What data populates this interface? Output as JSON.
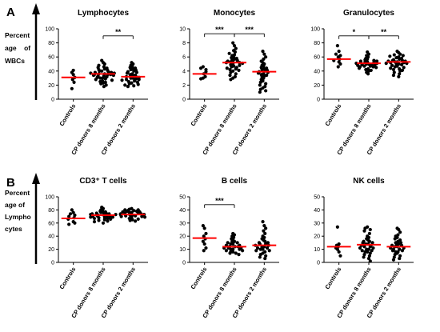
{
  "figure": {
    "rows": [
      {
        "letter": "A",
        "ylabel_lines": [
          "Percent",
          "age    of",
          "WBCs"
        ]
      },
      {
        "letter": "B",
        "ylabel_lines": [
          "Percent",
          "age of",
          "Lympho",
          "cytes"
        ]
      }
    ]
  },
  "chart_data": [
    {
      "type": "scatter",
      "title": "Lymphocytes",
      "categories": [
        "Controls",
        "CP donors 8 months",
        "CP donors 2 months"
      ],
      "ylim": [
        0,
        100
      ],
      "yticks": [
        0,
        20,
        40,
        60,
        80,
        100
      ],
      "medians": [
        31,
        36,
        32
      ],
      "series": [
        {
          "values": [
            38,
            35,
            31,
            28,
            24,
            15,
            41
          ]
        },
        {
          "values": [
            55,
            52,
            50,
            48,
            46,
            45,
            44,
            43,
            42,
            41,
            40,
            40,
            39,
            38,
            38,
            37,
            37,
            36,
            36,
            35,
            35,
            35,
            34,
            34,
            33,
            33,
            32,
            31,
            30,
            30,
            29,
            28,
            27,
            26,
            25,
            24,
            23,
            22,
            20,
            18
          ]
        },
        {
          "values": [
            52,
            50,
            48,
            46,
            45,
            44,
            43,
            42,
            41,
            40,
            39,
            38,
            37,
            36,
            35,
            34,
            33,
            33,
            32,
            32,
            31,
            30,
            30,
            29,
            28,
            28,
            27,
            26,
            25,
            24,
            23,
            22,
            21,
            20,
            19,
            18
          ]
        }
      ],
      "significance": [
        {
          "from": 1,
          "to": 2,
          "label": "**",
          "y": 90
        }
      ],
      "median_color": "#ff0000",
      "point_color": "#000000"
    },
    {
      "type": "scatter",
      "title": "Monocytes",
      "categories": [
        "Controls",
        "CP donors 8 months",
        "CP donors 2 months"
      ],
      "ylim": [
        0,
        10
      ],
      "yticks": [
        0,
        2,
        4,
        6,
        8,
        10
      ],
      "medians": [
        3.6,
        5.2,
        3.9
      ],
      "series": [
        {
          "values": [
            4.6,
            4.4,
            3.9,
            3.6,
            3.2,
            3.0,
            2.9,
            4.2
          ]
        },
        {
          "values": [
            8.0,
            7.6,
            7.2,
            6.9,
            6.7,
            6.5,
            6.3,
            6.2,
            6.0,
            5.9,
            5.8,
            5.7,
            5.6,
            5.5,
            5.4,
            5.3,
            5.3,
            5.2,
            5.2,
            5.1,
            5.0,
            4.9,
            4.8,
            4.7,
            4.6,
            4.5,
            4.4,
            4.3,
            4.2,
            4.1,
            4.0,
            3.8,
            3.6,
            3.4,
            3.2,
            3.0,
            2.8
          ]
        },
        {
          "values": [
            6.8,
            6.4,
            6.0,
            5.7,
            5.4,
            5.2,
            5.0,
            4.8,
            4.7,
            4.5,
            4.4,
            4.3,
            4.2,
            4.1,
            4.0,
            3.9,
            3.8,
            3.7,
            3.6,
            3.5,
            3.4,
            3.3,
            3.2,
            3.0,
            2.8,
            2.6,
            2.4,
            2.2,
            2.0,
            1.8,
            1.6,
            1.4,
            1.2,
            1.0
          ]
        }
      ],
      "significance": [
        {
          "from": 0,
          "to": 1,
          "label": "***",
          "y": 9.3
        },
        {
          "from": 1,
          "to": 2,
          "label": "***",
          "y": 9.3
        }
      ],
      "median_color": "#ff0000",
      "point_color": "#000000"
    },
    {
      "type": "scatter",
      "title": "Granulocytes",
      "categories": [
        "Controls",
        "CP donors 8 months",
        "CP donors 2 months"
      ],
      "ylim": [
        0,
        100
      ],
      "yticks": [
        0,
        20,
        40,
        60,
        80,
        100
      ],
      "medians": [
        57,
        51,
        53
      ],
      "series": [
        {
          "values": [
            76,
            68,
            62,
            60,
            57,
            55,
            53,
            50,
            46,
            64
          ]
        },
        {
          "values": [
            67,
            64,
            62,
            60,
            58,
            57,
            56,
            55,
            54,
            54,
            53,
            53,
            52,
            52,
            51,
            51,
            50,
            50,
            49,
            49,
            48,
            48,
            47,
            47,
            46,
            46,
            45,
            44,
            43,
            42,
            41,
            40,
            38,
            36
          ]
        },
        {
          "values": [
            68,
            66,
            64,
            63,
            62,
            61,
            60,
            59,
            58,
            57,
            56,
            55,
            55,
            54,
            54,
            53,
            53,
            52,
            52,
            51,
            51,
            50,
            50,
            49,
            48,
            47,
            46,
            45,
            44,
            43,
            42,
            41,
            40,
            38,
            36,
            34,
            32
          ]
        }
      ],
      "significance": [
        {
          "from": 0,
          "to": 1,
          "label": "*",
          "y": 90
        },
        {
          "from": 1,
          "to": 2,
          "label": "**",
          "y": 90
        }
      ],
      "median_color": "#ff0000",
      "point_color": "#000000"
    },
    {
      "type": "scatter",
      "title": "CD3⁺ T cells",
      "categories": [
        "Controls",
        "CP donors 8 months",
        "CP donors 2 months"
      ],
      "ylim": [
        0,
        100
      ],
      "yticks": [
        0,
        20,
        40,
        60,
        80,
        100
      ],
      "medians": [
        67,
        72,
        73
      ],
      "series": [
        {
          "values": [
            80,
            76,
            72,
            70,
            68,
            66,
            62,
            60,
            58,
            74
          ]
        },
        {
          "values": [
            84,
            82,
            80,
            79,
            78,
            77,
            76,
            76,
            75,
            75,
            74,
            74,
            73,
            73,
            72,
            72,
            71,
            71,
            70,
            70,
            69,
            69,
            68,
            68,
            67,
            67,
            66,
            65,
            64,
            63,
            62,
            60
          ]
        },
        {
          "values": [
            82,
            81,
            80,
            80,
            79,
            79,
            78,
            78,
            77,
            77,
            76,
            76,
            75,
            75,
            74,
            74,
            73,
            73,
            72,
            72,
            71,
            71,
            70,
            70,
            69,
            68,
            67,
            66,
            65,
            64,
            63
          ]
        }
      ],
      "significance": [],
      "median_color": "#ff0000",
      "point_color": "#000000"
    },
    {
      "type": "scatter",
      "title": "B cells",
      "categories": [
        "Controls",
        "CP donors 8 months",
        "CP donors 2 months"
      ],
      "ylim": [
        0,
        50
      ],
      "yticks": [
        0,
        10,
        20,
        30,
        40,
        50
      ],
      "medians": [
        18.5,
        12,
        13
      ],
      "series": [
        {
          "values": [
            28,
            26,
            22,
            20,
            18,
            16,
            14,
            11,
            9
          ]
        },
        {
          "values": [
            22,
            21,
            20,
            19,
            18,
            17,
            16,
            16,
            15,
            15,
            14,
            14,
            13,
            13,
            12,
            12,
            12,
            11,
            11,
            11,
            10,
            10,
            10,
            9,
            9,
            8,
            8,
            7,
            7,
            6
          ]
        },
        {
          "values": [
            31,
            28,
            26,
            24,
            22,
            20,
            19,
            18,
            17,
            16,
            15,
            15,
            14,
            14,
            13,
            13,
            12,
            12,
            11,
            11,
            10,
            10,
            9,
            9,
            8,
            7,
            6,
            5,
            4,
            3
          ]
        }
      ],
      "significance": [
        {
          "from": 0,
          "to": 1,
          "label": "***",
          "y": 44
        }
      ],
      "median_color": "#ff0000",
      "point_color": "#000000"
    },
    {
      "type": "scatter",
      "title": "NK cells",
      "categories": [
        "Controls",
        "CP donors 8 months",
        "CP donors 2 months"
      ],
      "ylim": [
        0,
        50
      ],
      "yticks": [
        0,
        10,
        20,
        30,
        40,
        50
      ],
      "medians": [
        12,
        13.5,
        12
      ],
      "series": [
        {
          "values": [
            27,
            14,
            13,
            12,
            11,
            10,
            8,
            5
          ]
        },
        {
          "values": [
            27,
            26,
            25,
            24,
            22,
            20,
            19,
            18,
            17,
            16,
            16,
            15,
            15,
            14,
            14,
            13,
            13,
            12,
            12,
            11,
            11,
            10,
            10,
            9,
            9,
            8,
            8,
            7,
            6,
            5,
            4,
            3,
            1
          ]
        },
        {
          "values": [
            26,
            25,
            23,
            21,
            20,
            19,
            18,
            17,
            16,
            15,
            15,
            14,
            14,
            13,
            13,
            12,
            12,
            11,
            11,
            10,
            10,
            9,
            9,
            8,
            8,
            7,
            6,
            5,
            4,
            3,
            2
          ]
        }
      ],
      "significance": [],
      "median_color": "#ff0000",
      "point_color": "#000000"
    }
  ]
}
